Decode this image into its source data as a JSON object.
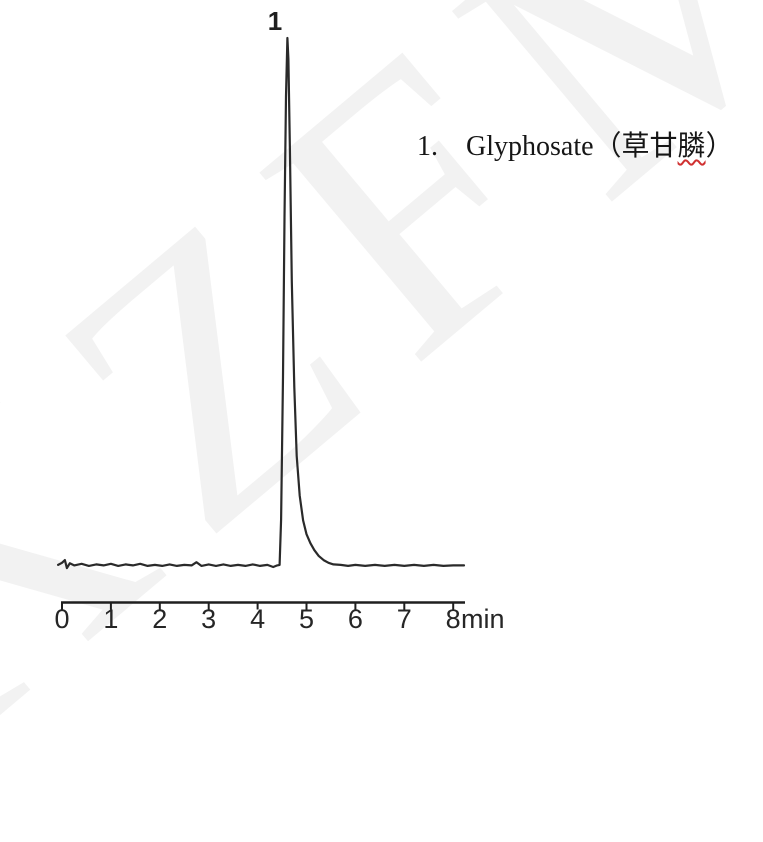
{
  "figure": {
    "kind": "HPLC chromatogram",
    "background": "#ffffff"
  },
  "watermark": {
    "approx_letters": "XZFM",
    "color": "#f2f2f2",
    "rotation_deg": -40
  },
  "legend": {
    "number": "1.",
    "compound_en": "Glyphosate",
    "paren_open": "（",
    "compound_zh": "草甘",
    "compound_zh_underlined": "膦",
    "paren_close": "）"
  },
  "colors": {
    "trace": "#2a2a2a",
    "axis": "#1f1f1f",
    "text": "#262626",
    "squiggle": "#d03030"
  },
  "chart_data": {
    "type": "line",
    "title": "",
    "xlabel": "min",
    "ylabel": "",
    "x_ticks": [
      0,
      1,
      2,
      3,
      4,
      5,
      6,
      7,
      8
    ],
    "x_unit_label": "min",
    "xlim": [
      -0.1,
      8.25
    ],
    "grid": false,
    "y_axis_shown": false,
    "legend_position": "right of peak",
    "peaks": [
      {
        "label": "1",
        "compound": "Glyphosate（草甘膦）",
        "retention_time_min": 4.6,
        "relative_height": 1.0
      }
    ],
    "trace_points_t_min_vs_response": [
      [
        -0.08,
        0.004
      ],
      [
        0.0,
        0.008
      ],
      [
        0.06,
        0.013
      ],
      [
        0.1,
        -0.002
      ],
      [
        0.16,
        0.007
      ],
      [
        0.25,
        0.003
      ],
      [
        0.4,
        0.006
      ],
      [
        0.55,
        0.002
      ],
      [
        0.7,
        0.005
      ],
      [
        0.85,
        0.003
      ],
      [
        1.0,
        0.006
      ],
      [
        1.15,
        0.002
      ],
      [
        1.3,
        0.005
      ],
      [
        1.45,
        0.003
      ],
      [
        1.6,
        0.006
      ],
      [
        1.75,
        0.002
      ],
      [
        1.9,
        0.004
      ],
      [
        2.05,
        0.002
      ],
      [
        2.2,
        0.005
      ],
      [
        2.35,
        0.002
      ],
      [
        2.5,
        0.004
      ],
      [
        2.65,
        0.003
      ],
      [
        2.75,
        0.009
      ],
      [
        2.85,
        0.002
      ],
      [
        3.0,
        0.005
      ],
      [
        3.15,
        0.002
      ],
      [
        3.3,
        0.005
      ],
      [
        3.45,
        0.002
      ],
      [
        3.6,
        0.004
      ],
      [
        3.75,
        0.002
      ],
      [
        3.9,
        0.005
      ],
      [
        4.05,
        0.002
      ],
      [
        4.2,
        0.004
      ],
      [
        4.32,
        0.0
      ],
      [
        4.4,
        0.003
      ],
      [
        4.45,
        0.004
      ],
      [
        4.48,
        0.09
      ],
      [
        4.52,
        0.36
      ],
      [
        4.55,
        0.66
      ],
      [
        4.58,
        0.89
      ],
      [
        4.61,
        1.0
      ],
      [
        4.63,
        0.96
      ],
      [
        4.66,
        0.79
      ],
      [
        4.7,
        0.54
      ],
      [
        4.75,
        0.34
      ],
      [
        4.8,
        0.21
      ],
      [
        4.86,
        0.135
      ],
      [
        4.93,
        0.088
      ],
      [
        5.0,
        0.062
      ],
      [
        5.08,
        0.045
      ],
      [
        5.16,
        0.032
      ],
      [
        5.25,
        0.021
      ],
      [
        5.35,
        0.013
      ],
      [
        5.45,
        0.008
      ],
      [
        5.55,
        0.005
      ],
      [
        5.7,
        0.004
      ],
      [
        5.85,
        0.002
      ],
      [
        6.0,
        0.004
      ],
      [
        6.2,
        0.002
      ],
      [
        6.4,
        0.004
      ],
      [
        6.6,
        0.002
      ],
      [
        6.8,
        0.004
      ],
      [
        7.0,
        0.002
      ],
      [
        7.2,
        0.004
      ],
      [
        7.4,
        0.002
      ],
      [
        7.6,
        0.004
      ],
      [
        7.8,
        0.002
      ],
      [
        8.0,
        0.003
      ],
      [
        8.22,
        0.003
      ]
    ]
  }
}
